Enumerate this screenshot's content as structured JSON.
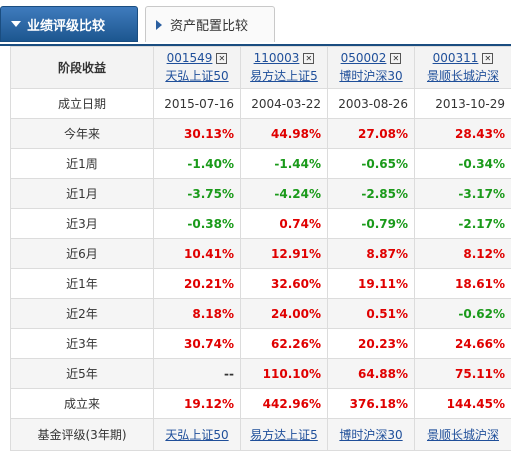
{
  "tabs": [
    {
      "label": "业绩评级比较",
      "active": true
    },
    {
      "label": "资产配置比较",
      "active": false
    }
  ],
  "header_label": "阶段收益",
  "funds": [
    {
      "code": "001549",
      "name": "天弘上证50"
    },
    {
      "code": "110003",
      "name": "易方达上证5"
    },
    {
      "code": "050002",
      "name": "博时沪深30"
    },
    {
      "code": "000311",
      "name": "景顺长城沪深"
    }
  ],
  "close_glyph": "✕",
  "inception_row": {
    "label": "成立日期",
    "values": [
      "2015-07-16",
      "2004-03-22",
      "2003-08-26",
      "2013-10-29"
    ]
  },
  "rows": [
    {
      "label": "今年来",
      "values": [
        "30.13%",
        "44.98%",
        "27.08%",
        "28.43%"
      ],
      "signs": [
        "pos",
        "pos",
        "pos",
        "pos"
      ]
    },
    {
      "label": "近1周",
      "values": [
        "-1.40%",
        "-1.44%",
        "-0.65%",
        "-0.34%"
      ],
      "signs": [
        "neg",
        "neg",
        "neg",
        "neg"
      ]
    },
    {
      "label": "近1月",
      "values": [
        "-3.75%",
        "-4.24%",
        "-2.85%",
        "-3.17%"
      ],
      "signs": [
        "neg",
        "neg",
        "neg",
        "neg"
      ]
    },
    {
      "label": "近3月",
      "values": [
        "-0.38%",
        "0.74%",
        "-0.79%",
        "-2.17%"
      ],
      "signs": [
        "neg",
        "pos",
        "neg",
        "neg"
      ]
    },
    {
      "label": "近6月",
      "values": [
        "10.41%",
        "12.91%",
        "8.87%",
        "8.12%"
      ],
      "signs": [
        "pos",
        "pos",
        "pos",
        "pos"
      ]
    },
    {
      "label": "近1年",
      "values": [
        "20.21%",
        "32.60%",
        "19.11%",
        "18.61%"
      ],
      "signs": [
        "pos",
        "pos",
        "pos",
        "pos"
      ]
    },
    {
      "label": "近2年",
      "values": [
        "8.18%",
        "24.00%",
        "0.51%",
        "-0.62%"
      ],
      "signs": [
        "pos",
        "pos",
        "pos",
        "neg"
      ]
    },
    {
      "label": "近3年",
      "values": [
        "30.74%",
        "62.26%",
        "20.23%",
        "24.66%"
      ],
      "signs": [
        "pos",
        "pos",
        "pos",
        "pos"
      ]
    },
    {
      "label": "近5年",
      "values": [
        "--",
        "110.10%",
        "64.88%",
        "75.11%"
      ],
      "signs": [
        "flat",
        "pos",
        "pos",
        "pos"
      ]
    },
    {
      "label": "成立来",
      "values": [
        "19.12%",
        "442.96%",
        "376.18%",
        "144.45%"
      ],
      "signs": [
        "pos",
        "pos",
        "pos",
        "pos"
      ]
    }
  ],
  "rating_row": {
    "label": "基金评级(3年期)",
    "links": [
      "天弘上证50",
      "易方达上证5",
      "博时沪深30",
      "景顺长城沪深"
    ]
  },
  "colors": {
    "positive": "#e00000",
    "negative": "#1a9a1a",
    "tab_active": "#1c568f",
    "link": "#1f4f9a"
  }
}
